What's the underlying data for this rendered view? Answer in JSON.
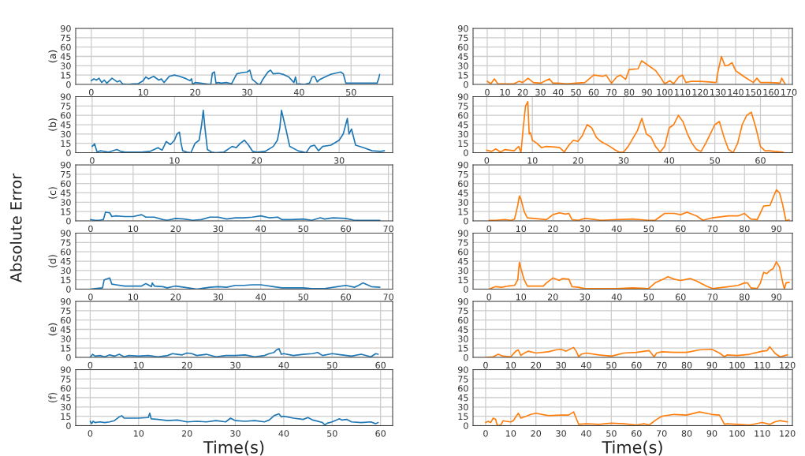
{
  "chart_data": [
    {
      "type": "line",
      "ylabel": "(a)",
      "annotations": [
        "Absolute Error"
      ],
      "xlim": [
        -3,
        58
      ],
      "xticks": [
        0,
        10,
        20,
        30,
        40,
        50
      ],
      "ylim": [
        0,
        90
      ],
      "yticks": [
        0,
        15,
        30,
        45,
        60,
        75,
        90
      ],
      "grid": true,
      "series": [
        {
          "color": "#1f77b4",
          "x": [
            0,
            0.5,
            1,
            1.5,
            2,
            2.5,
            3,
            4,
            5,
            5.5,
            6,
            7,
            8,
            9,
            10,
            10.5,
            11,
            12,
            13,
            13.5,
            14,
            15,
            16,
            17,
            18,
            19,
            19.3,
            19.5,
            20,
            21,
            22,
            23,
            23.3,
            23.7,
            24,
            24.5,
            25,
            26,
            27,
            28,
            29,
            30,
            30.5,
            31,
            32,
            32.5,
            33,
            33.5,
            34,
            34.5,
            35,
            36,
            37,
            38,
            39,
            39.3,
            39.6,
            40,
            41,
            42,
            42.5,
            43,
            43.5,
            44,
            45,
            46,
            47,
            48,
            48.5,
            49,
            50,
            52,
            54,
            55,
            55.3,
            55.5
          ],
          "values": [
            6,
            9,
            7,
            10,
            3,
            7,
            2,
            10,
            4,
            6,
            1,
            0,
            1,
            1,
            6,
            12,
            9,
            13,
            7,
            9,
            3,
            13,
            15,
            13,
            10,
            6,
            9,
            0,
            3,
            2,
            1,
            0,
            18,
            20,
            2,
            3,
            2,
            3,
            1,
            17,
            19,
            20,
            23,
            8,
            1,
            0,
            8,
            14,
            20,
            23,
            17,
            18,
            16,
            12,
            3,
            12,
            0,
            1,
            0,
            2,
            12,
            13,
            4,
            8,
            12,
            16,
            18,
            20,
            17,
            2,
            2,
            2,
            2,
            2,
            9,
            16
          ]
        }
      ]
    },
    {
      "type": "line",
      "xlim": [
        -8,
        172
      ],
      "xticks": [
        0,
        10,
        20,
        30,
        40,
        50,
        60,
        70,
        80,
        90,
        100,
        110,
        120,
        130,
        140,
        150,
        160,
        170
      ],
      "ylim": [
        0,
        90
      ],
      "yticks": [
        0,
        15,
        30,
        45,
        60,
        75,
        90
      ],
      "grid": true,
      "series": [
        {
          "color": "#ff7f0e",
          "x": [
            0,
            2,
            4,
            6,
            10,
            15,
            18,
            20,
            23,
            26,
            30,
            35,
            37,
            40,
            45,
            50,
            55,
            60,
            65,
            67,
            70,
            73,
            75,
            78,
            80,
            85,
            87,
            90,
            95,
            98,
            100,
            103,
            105,
            108,
            110,
            112,
            115,
            120,
            125,
            129,
            130,
            132,
            134,
            136,
            138,
            140,
            142,
            145,
            150,
            152,
            154,
            160,
            165,
            166,
            168
          ],
          "values": [
            5,
            1,
            9,
            1,
            1,
            1,
            5,
            3,
            10,
            3,
            2,
            9,
            2,
            2,
            1,
            2,
            3,
            15,
            13,
            15,
            2,
            12,
            15,
            8,
            24,
            25,
            38,
            32,
            22,
            10,
            1,
            6,
            1,
            12,
            15,
            3,
            5,
            5,
            4,
            3,
            20,
            45,
            30,
            31,
            35,
            22,
            18,
            12,
            3,
            10,
            3,
            3,
            2,
            10,
            0
          ]
        }
      ]
    },
    {
      "type": "line",
      "ylabel": "(b)",
      "xlim": [
        -2,
        36.5
      ],
      "xticks": [
        0,
        10,
        20,
        30
      ],
      "ylim": [
        0,
        90
      ],
      "yticks": [
        0,
        15,
        30,
        45,
        60,
        75,
        90
      ],
      "grid": true,
      "series": [
        {
          "color": "#1f77b4",
          "x": [
            0,
            0.3,
            0.6,
            1,
            2,
            3,
            3.5,
            4,
            5,
            6,
            7,
            8,
            8.5,
            9,
            9.5,
            10,
            10.3,
            10.6,
            10.8,
            11,
            11.5,
            12,
            12.5,
            13,
            13.3,
            13.5,
            13.7,
            14,
            14.5,
            15,
            16,
            17,
            17.5,
            18,
            18.5,
            19,
            19.5,
            20,
            21,
            22,
            22.5,
            22.8,
            23,
            23.5,
            24,
            25,
            26,
            26.5,
            27,
            27.5,
            28,
            29,
            30,
            30.5,
            31,
            31.2,
            31.5,
            32,
            33,
            34,
            35,
            35.5
          ],
          "values": [
            10,
            14,
            1,
            3,
            1,
            5,
            2,
            1,
            1,
            1,
            2,
            8,
            4,
            18,
            13,
            20,
            30,
            33,
            15,
            3,
            1,
            0,
            15,
            20,
            45,
            68,
            40,
            5,
            1,
            0,
            1,
            10,
            8,
            15,
            20,
            12,
            2,
            1,
            2,
            10,
            20,
            40,
            68,
            40,
            10,
            3,
            0,
            10,
            12,
            3,
            10,
            12,
            20,
            30,
            55,
            30,
            38,
            12,
            8,
            3,
            2,
            3
          ]
        }
      ]
    },
    {
      "type": "line",
      "xlim": [
        -3,
        67
      ],
      "xticks": [
        0,
        10,
        20,
        30,
        40,
        50,
        60
      ],
      "ylim": [
        0,
        90
      ],
      "yticks": [
        0,
        15,
        30,
        45,
        60,
        75,
        90
      ],
      "grid": true,
      "series": [
        {
          "color": "#ff7f0e",
          "x": [
            0,
            1,
            2,
            3,
            4,
            5,
            6,
            7,
            7.5,
            8,
            8.5,
            9,
            9.3,
            9.6,
            10,
            11,
            12,
            13,
            15,
            16,
            17,
            18,
            19,
            20,
            21,
            22,
            23,
            24,
            25,
            27,
            28,
            29,
            30,
            31,
            33,
            34,
            35,
            36,
            37,
            38,
            39,
            40,
            41,
            42,
            43,
            44,
            45,
            46,
            47,
            48,
            49,
            50,
            51,
            52,
            53,
            54,
            55,
            56,
            57,
            58,
            59,
            60,
            61,
            62,
            63,
            65
          ],
          "values": [
            4,
            2,
            6,
            1,
            5,
            4,
            3,
            10,
            0,
            40,
            75,
            82,
            30,
            32,
            20,
            15,
            8,
            10,
            9,
            8,
            1,
            12,
            20,
            18,
            28,
            45,
            40,
            25,
            18,
            10,
            5,
            1,
            1,
            10,
            35,
            55,
            30,
            25,
            10,
            1,
            10,
            40,
            45,
            60,
            50,
            30,
            15,
            5,
            2,
            15,
            30,
            45,
            50,
            25,
            5,
            0,
            15,
            45,
            60,
            65,
            40,
            10,
            3,
            3,
            2,
            1
          ]
        }
      ]
    },
    {
      "type": "line",
      "ylabel": "(c)",
      "xlim": [
        -3.5,
        71
      ],
      "xticks": [
        0,
        10,
        20,
        30,
        40,
        50,
        60,
        70
      ],
      "ylim": [
        0,
        90
      ],
      "yticks": [
        0,
        15,
        30,
        45,
        60,
        75,
        90
      ],
      "grid": true,
      "series": [
        {
          "color": "#1f77b4",
          "x": [
            0,
            1,
            2,
            3,
            3.5,
            4.5,
            5,
            6,
            8,
            10,
            12,
            13,
            15,
            17,
            18,
            20,
            22,
            24,
            26,
            28,
            30,
            32,
            34,
            36,
            38,
            40,
            42,
            44,
            45,
            47,
            50,
            52,
            54,
            55,
            57,
            60,
            62,
            65,
            68
          ],
          "values": [
            2,
            1,
            1,
            2,
            14,
            13,
            7,
            8,
            7,
            7,
            10,
            6,
            6,
            2,
            1,
            4,
            3,
            1,
            2,
            6,
            6,
            3,
            5,
            5,
            6,
            8,
            5,
            6,
            2,
            2,
            3,
            1,
            5,
            3,
            5,
            4,
            1,
            1,
            1
          ]
        }
      ]
    },
    {
      "type": "line",
      "xlim": [
        -5,
        95
      ],
      "xticks": [
        0,
        10,
        20,
        30,
        40,
        50,
        60,
        70,
        80,
        90
      ],
      "ylim": [
        0,
        90
      ],
      "yticks": [
        0,
        15,
        30,
        45,
        60,
        75,
        90
      ],
      "grid": true,
      "series": [
        {
          "color": "#ff7f0e",
          "x": [
            0,
            2,
            5,
            7,
            8,
            9,
            9.5,
            10,
            11,
            12,
            14,
            16,
            18,
            20,
            22,
            24,
            25,
            26,
            28,
            30,
            32,
            35,
            40,
            45,
            50,
            52,
            55,
            58,
            60,
            62,
            65,
            67,
            70,
            75,
            78,
            80,
            82,
            84,
            86,
            88,
            89,
            90,
            91,
            92,
            93,
            94
          ],
          "values": [
            1,
            1,
            2,
            1,
            3,
            25,
            40,
            35,
            15,
            5,
            4,
            3,
            2,
            10,
            13,
            11,
            12,
            2,
            1,
            4,
            3,
            1,
            2,
            3,
            1,
            1,
            12,
            12,
            10,
            14,
            8,
            1,
            5,
            8,
            8,
            12,
            3,
            2,
            24,
            25,
            38,
            50,
            45,
            25,
            0,
            2
          ]
        }
      ]
    },
    {
      "type": "line",
      "ylabel": "(d)",
      "xlim": [
        -3.5,
        71
      ],
      "xticks": [
        0,
        10,
        20,
        30,
        40,
        50,
        60,
        70
      ],
      "ylim": [
        0,
        90
      ],
      "yticks": [
        0,
        15,
        30,
        45,
        60,
        75,
        90
      ],
      "grid": true,
      "series": [
        {
          "color": "#1f77b4",
          "x": [
            0,
            1,
            2.8,
            3.2,
            4.5,
            5,
            6,
            8,
            10,
            12,
            13,
            14.3,
            14.5,
            15,
            17,
            18,
            20,
            22,
            25,
            28,
            30,
            32,
            34,
            36,
            38,
            40,
            41,
            43,
            45,
            48,
            50,
            52,
            55,
            58,
            60,
            62,
            63,
            64,
            66,
            68
          ],
          "values": [
            0,
            1,
            2,
            15,
            18,
            8,
            7,
            5,
            5,
            5,
            9,
            4,
            10,
            5,
            4,
            2,
            5,
            3,
            0,
            3,
            4,
            3,
            6,
            6,
            7,
            7,
            6,
            4,
            2,
            2,
            2,
            1,
            1,
            4,
            6,
            3,
            6,
            10,
            4,
            3
          ]
        }
      ]
    },
    {
      "type": "line",
      "xlim": [
        -5,
        95
      ],
      "xticks": [
        0,
        10,
        20,
        30,
        40,
        50,
        60,
        70,
        80,
        90
      ],
      "ylim": [
        0,
        90
      ],
      "yticks": [
        0,
        15,
        30,
        45,
        60,
        75,
        90
      ],
      "grid": true,
      "series": [
        {
          "color": "#ff7f0e",
          "x": [
            0,
            2,
            4,
            6,
            8,
            9,
            9.5,
            10,
            11,
            12,
            14,
            17,
            18,
            20,
            22,
            23,
            25,
            26,
            28,
            30,
            35,
            40,
            45,
            50,
            52,
            55,
            56,
            58,
            60,
            63,
            65,
            68,
            70,
            75,
            78,
            80,
            81,
            82,
            84,
            85,
            86,
            87,
            88,
            89,
            90,
            91,
            92,
            92.5,
            93,
            94
          ],
          "values": [
            0,
            4,
            3,
            5,
            6,
            15,
            43,
            33,
            15,
            5,
            5,
            5,
            10,
            18,
            14,
            17,
            16,
            4,
            3,
            1,
            1,
            1,
            2,
            1,
            10,
            17,
            20,
            16,
            14,
            17,
            13,
            5,
            1,
            4,
            6,
            10,
            10,
            2,
            1,
            10,
            27,
            25,
            30,
            33,
            44,
            35,
            10,
            0,
            10,
            11
          ]
        }
      ]
    },
    {
      "type": "line",
      "ylabel": "(e)",
      "xlim": [
        -3,
        62.5
      ],
      "xticks": [
        0,
        10,
        20,
        30,
        40,
        50,
        60
      ],
      "ylim": [
        0,
        90
      ],
      "yticks": [
        0,
        15,
        30,
        45,
        60,
        75,
        90
      ],
      "grid": true,
      "series": [
        {
          "color": "#1f77b4",
          "x": [
            0,
            0.5,
            1,
            2,
            3,
            4,
            5,
            6,
            7,
            8,
            10,
            12,
            14,
            16,
            17,
            18,
            19,
            20,
            21,
            22,
            24,
            26,
            28,
            30,
            32,
            34,
            36,
            37,
            38,
            38.5,
            39,
            39.5,
            40,
            42,
            44,
            46,
            47,
            48,
            50,
            52,
            54,
            56,
            58,
            59,
            59.5
          ],
          "values": [
            0,
            5,
            2,
            3,
            1,
            4,
            2,
            5,
            1,
            3,
            2,
            3,
            1,
            3,
            6,
            5,
            4,
            7,
            6,
            3,
            5,
            1,
            3,
            3,
            4,
            1,
            3,
            6,
            8,
            12,
            14,
            5,
            6,
            3,
            5,
            6,
            8,
            3,
            6,
            4,
            2,
            5,
            1,
            6,
            5
          ]
        }
      ]
    },
    {
      "type": "line",
      "xlim": [
        -5,
        122
      ],
      "xticks": [
        0,
        10,
        20,
        30,
        40,
        50,
        60,
        70,
        80,
        90,
        100,
        110,
        120
      ],
      "ylim": [
        0,
        90
      ],
      "yticks": [
        0,
        15,
        30,
        45,
        60,
        75,
        90
      ],
      "grid": true,
      "series": [
        {
          "color": "#ff7f0e",
          "x": [
            0,
            3,
            5,
            7,
            10,
            12,
            13,
            14,
            15,
            17,
            20,
            25,
            28,
            30,
            32,
            35,
            36,
            37,
            38,
            40,
            45,
            50,
            55,
            60,
            65,
            67,
            68,
            70,
            75,
            80,
            85,
            90,
            93,
            95,
            96,
            100,
            105,
            110,
            112,
            113,
            115,
            117,
            120
          ],
          "values": [
            0,
            1,
            5,
            2,
            1,
            10,
            12,
            3,
            6,
            10,
            7,
            9,
            12,
            13,
            10,
            16,
            10,
            1,
            5,
            7,
            4,
            2,
            7,
            8,
            11,
            1,
            7,
            9,
            8,
            8,
            12,
            13,
            7,
            1,
            4,
            3,
            5,
            10,
            11,
            17,
            7,
            1,
            4
          ]
        }
      ]
    },
    {
      "type": "line",
      "ylabel": "(f)",
      "xlabel": "Time(s)",
      "xlim": [
        -3,
        62.5
      ],
      "xticks": [
        0,
        10,
        20,
        30,
        40,
        50,
        60
      ],
      "ylim": [
        0,
        90
      ],
      "yticks": [
        0,
        15,
        30,
        45,
        60,
        75,
        90
      ],
      "grid": true,
      "series": [
        {
          "color": "#1f77b4",
          "x": [
            0,
            0.3,
            0.6,
            1,
            2,
            3,
            4,
            5,
            6,
            6.5,
            7,
            8,
            10,
            12,
            12.3,
            12.6,
            14,
            16,
            18,
            20,
            22,
            24,
            26,
            28,
            29,
            30,
            32,
            34,
            36,
            37,
            38,
            39,
            39.5,
            40,
            42,
            44,
            45,
            46,
            48,
            48.5,
            49,
            50,
            51.5,
            52,
            53,
            54,
            56,
            58,
            59,
            59.5
          ],
          "values": [
            7,
            3,
            7,
            5,
            6,
            5,
            6,
            8,
            14,
            16,
            12,
            12,
            12,
            13,
            20,
            11,
            10,
            8,
            9,
            6,
            7,
            6,
            8,
            6,
            12,
            8,
            7,
            8,
            6,
            9,
            16,
            19,
            14,
            15,
            12,
            10,
            13,
            9,
            5,
            1,
            4,
            6,
            11,
            9,
            10,
            6,
            5,
            6,
            3,
            5
          ]
        }
      ]
    },
    {
      "type": "line",
      "xlabel": "Time(s)",
      "xlim": [
        -5,
        122
      ],
      "xticks": [
        0,
        10,
        20,
        30,
        40,
        50,
        60,
        70,
        80,
        90,
        100,
        110,
        120
      ],
      "ylim": [
        0,
        90
      ],
      "yticks": [
        0,
        15,
        30,
        45,
        60,
        75,
        90
      ],
      "grid": true,
      "series": [
        {
          "color": "#ff7f0e",
          "x": [
            0,
            1,
            2,
            3,
            4,
            4.5,
            5,
            6,
            7,
            8,
            10,
            11,
            12,
            13,
            14,
            16,
            18,
            20,
            25,
            30,
            33,
            35,
            36,
            37,
            40,
            45,
            50,
            55,
            60,
            63,
            65,
            68,
            70,
            75,
            80,
            85,
            90,
            93,
            95,
            96,
            100,
            105,
            110,
            113,
            115,
            117,
            120
          ],
          "values": [
            5,
            7,
            5,
            12,
            10,
            2,
            0,
            1,
            8,
            7,
            6,
            8,
            14,
            20,
            12,
            15,
            18,
            20,
            16,
            17,
            17,
            22,
            12,
            2,
            3,
            2,
            4,
            3,
            1,
            3,
            1,
            10,
            15,
            18,
            17,
            22,
            18,
            17,
            2,
            3,
            2,
            1,
            5,
            2,
            6,
            8,
            6
          ]
        }
      ]
    }
  ]
}
